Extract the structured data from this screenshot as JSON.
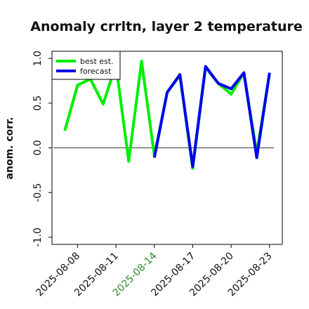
{
  "chart_data": {
    "type": "line",
    "title": "Anomaly crrltn, layer 2 temperature",
    "ylabel": "anom. corr.",
    "xlabel": "",
    "x": [
      "2025-08-07",
      "2025-08-08",
      "2025-08-09",
      "2025-08-10",
      "2025-08-11",
      "2025-08-12",
      "2025-08-13",
      "2025-08-14",
      "2025-08-15",
      "2025-08-16",
      "2025-08-17",
      "2025-08-18",
      "2025-08-19",
      "2025-08-20",
      "2025-08-21",
      "2025-08-22",
      "2025-08-23"
    ],
    "xlim": [
      "2025-08-06",
      "2025-08-24"
    ],
    "ylim": [
      -1.08,
      1.08
    ],
    "xticks": [
      "2025-08-08",
      "2025-08-11",
      "2025-08-14",
      "2025-08-17",
      "2025-08-20",
      "2025-08-23"
    ],
    "highlighted_xtick": "2025-08-14",
    "highlight_color": "#2e8b2e",
    "yticks": [
      -1.0,
      -0.5,
      0.0,
      0.5,
      1.0
    ],
    "ytick_labels": [
      "-1.0",
      "-0.5",
      "0.0",
      "0.5",
      "1.0"
    ],
    "reference_line_y": 0.0,
    "grid": false,
    "legend_position": "top-left",
    "series": [
      {
        "name": "best est.",
        "color": "#00ee00",
        "values": [
          0.19,
          0.7,
          0.77,
          0.49,
          0.93,
          -0.15,
          0.97,
          -0.09,
          0.62,
          0.81,
          -0.23,
          0.9,
          0.72,
          0.6,
          0.84,
          -0.06,
          0.83
        ]
      },
      {
        "name": "forecast",
        "color": "#0000ee",
        "values": [
          null,
          null,
          null,
          null,
          null,
          null,
          null,
          -0.11,
          0.62,
          0.82,
          -0.21,
          0.91,
          0.72,
          0.66,
          0.84,
          -0.11,
          0.84
        ]
      }
    ]
  }
}
